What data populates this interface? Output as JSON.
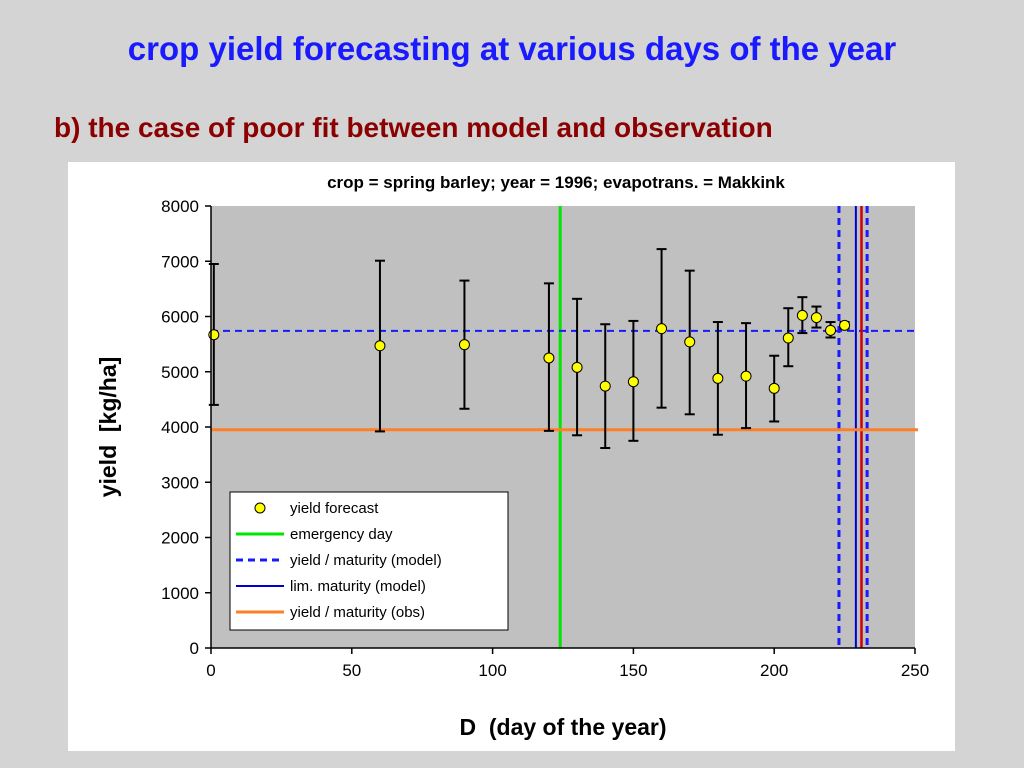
{
  "slide": {
    "title": "crop yield forecasting at various days of the year",
    "subtitle": "b) the case of poor fit between model and observation"
  },
  "chart_data": {
    "type": "scatter",
    "title": "crop = spring barley; year = 1996; evapotrans. = Makkink",
    "xlabel": "D  (day of the year)",
    "ylabel": "yield  [kg/ha]",
    "xlim": [
      0,
      250
    ],
    "ylim": [
      0,
      8000
    ],
    "xticks": [
      0,
      50,
      100,
      150,
      200,
      250
    ],
    "yticks": [
      0,
      1000,
      2000,
      3000,
      4000,
      5000,
      6000,
      7000,
      8000
    ],
    "grid": false,
    "legend_position": "lower-left",
    "plot_background": "#c0c0c0",
    "series": [
      {
        "name": "yield forecast",
        "kind": "points-with-errorbars",
        "color": "#ffff00",
        "points": [
          {
            "x": 1,
            "y": 5670,
            "low": 4400,
            "high": 6950
          },
          {
            "x": 60,
            "y": 5470,
            "low": 3920,
            "high": 7010
          },
          {
            "x": 90,
            "y": 5490,
            "low": 4330,
            "high": 6650
          },
          {
            "x": 120,
            "y": 5250,
            "low": 3930,
            "high": 6600
          },
          {
            "x": 130,
            "y": 5080,
            "low": 3850,
            "high": 6320
          },
          {
            "x": 140,
            "y": 4740,
            "low": 3620,
            "high": 5860
          },
          {
            "x": 150,
            "y": 4820,
            "low": 3750,
            "high": 5920
          },
          {
            "x": 160,
            "y": 5780,
            "low": 4350,
            "high": 7220
          },
          {
            "x": 170,
            "y": 5540,
            "low": 4230,
            "high": 6830
          },
          {
            "x": 180,
            "y": 4880,
            "low": 3860,
            "high": 5900
          },
          {
            "x": 190,
            "y": 4920,
            "low": 3980,
            "high": 5880
          },
          {
            "x": 200,
            "y": 4700,
            "low": 4100,
            "high": 5290
          },
          {
            "x": 205,
            "y": 5610,
            "low": 5100,
            "high": 6150
          },
          {
            "x": 210,
            "y": 6020,
            "low": 5700,
            "high": 6350
          },
          {
            "x": 215,
            "y": 5980,
            "low": 5800,
            "high": 6180
          },
          {
            "x": 220,
            "y": 5750,
            "low": 5620,
            "high": 5900
          },
          {
            "x": 225,
            "y": 5840,
            "low": 5780,
            "high": 5900
          }
        ]
      },
      {
        "name": "emergency day",
        "kind": "vline",
        "x": 124,
        "color": "#00e600",
        "style": "solid"
      },
      {
        "name": "yield / maturity (model)",
        "kind": "hline-vline",
        "y": 5740,
        "x": 223,
        "x2": 233,
        "color": "#1a1aff",
        "style": "dashed"
      },
      {
        "name": "lim. maturity (model)",
        "kind": "vline",
        "x": 229,
        "color": "#0000cc",
        "style": "solid"
      },
      {
        "name": "yield / maturity (obs)",
        "kind": "hline-vline",
        "y": 3950,
        "x": 231,
        "color": "#ff7f27",
        "style": "solid",
        "vline_color": "#d00000"
      }
    ]
  }
}
